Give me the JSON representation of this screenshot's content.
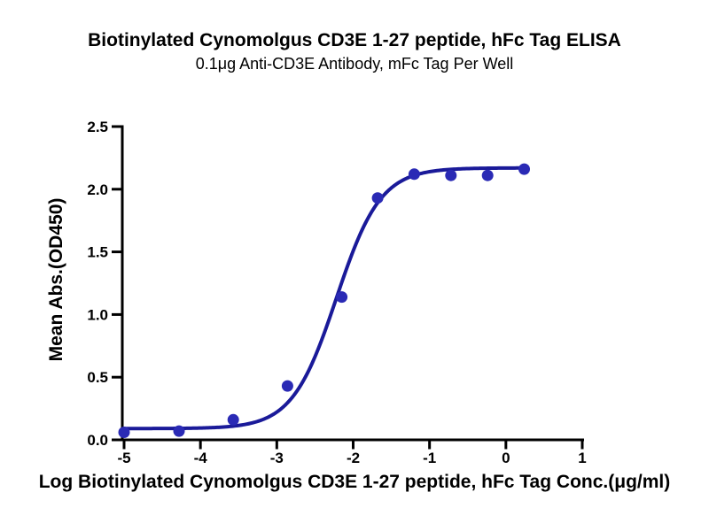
{
  "page": {
    "background": "#ffffff"
  },
  "chart_data": {
    "type": "scatter",
    "title": "Biotinylated Cynomolgus CD3E 1-27 peptide, hFc Tag ELISA",
    "subtitle": "0.1μg Anti-CD3E Antibody, mFc Tag Per Well",
    "xlabel": "Log Biotinylated Cynomolgus CD3E 1-27 peptide, hFc Tag Conc.(μg/ml)",
    "ylabel": "Mean Abs.(OD450)",
    "points": [
      {
        "x": -5.0,
        "y": 0.06
      },
      {
        "x": -4.28,
        "y": 0.07
      },
      {
        "x": -3.57,
        "y": 0.16
      },
      {
        "x": -2.86,
        "y": 0.43
      },
      {
        "x": -2.15,
        "y": 1.14
      },
      {
        "x": -1.68,
        "y": 1.93
      },
      {
        "x": -1.2,
        "y": 2.12
      },
      {
        "x": -0.72,
        "y": 2.11
      },
      {
        "x": -0.24,
        "y": 2.11
      },
      {
        "x": 0.24,
        "y": 2.16
      }
    ],
    "fit_curve": {
      "model": "four-parameter-logistic",
      "bottom": 0.09,
      "top": 2.17,
      "log_ec50": -2.22,
      "hill_slope": 1.5,
      "x_start": -5.0,
      "x_end": 0.24
    },
    "xlim": [
      -5,
      1
    ],
    "ylim": [
      0,
      2.5
    ],
    "xticks": {
      "values": [
        -5,
        -4,
        -3,
        -2,
        -1,
        0,
        1
      ],
      "labels": [
        "-5",
        "-4",
        "-3",
        "-2",
        "-1",
        "0",
        "1"
      ]
    },
    "yticks": {
      "values": [
        0,
        0.5,
        1.0,
        1.5,
        2.0,
        2.5
      ],
      "labels": [
        "0.0",
        "0.5",
        "1.0",
        "1.5",
        "2.0",
        "2.5"
      ]
    },
    "grid": false,
    "legend": null,
    "colors": {
      "curve": "#1a1a99",
      "points": "#2a2ab5",
      "axis": "#000000",
      "text": "#000000"
    }
  }
}
